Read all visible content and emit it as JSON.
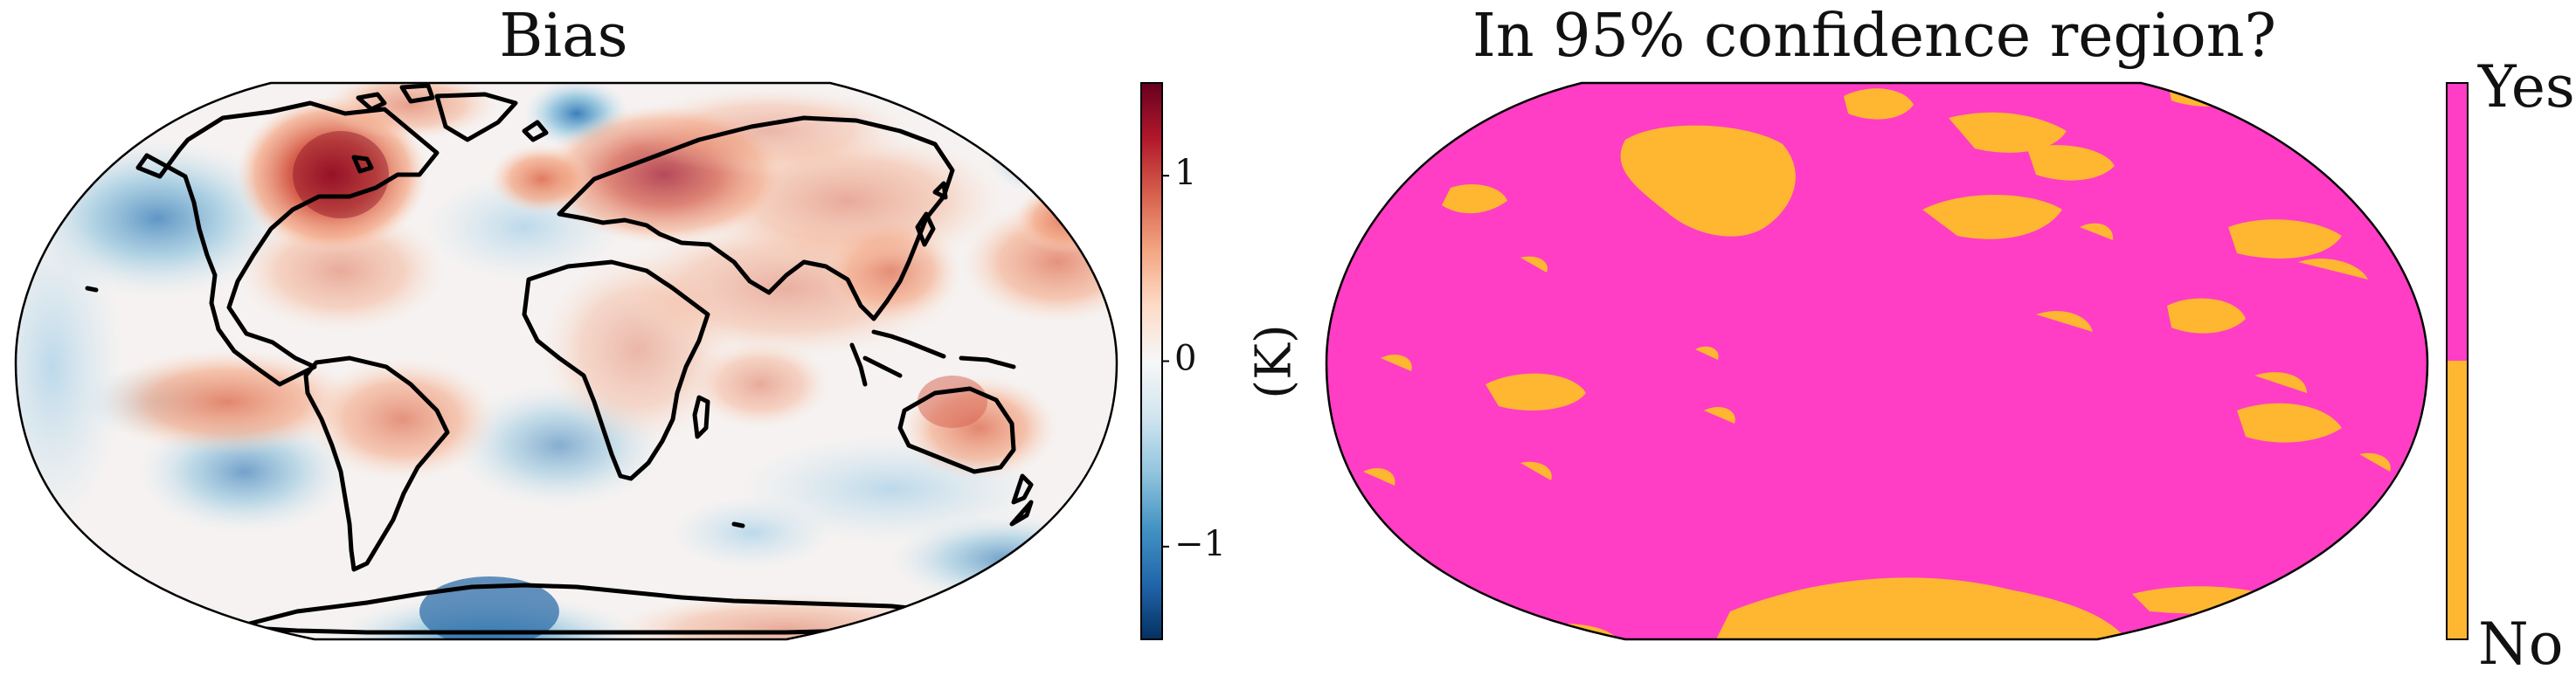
{
  "panels": [
    {
      "title": "Bias",
      "colorbar": {
        "unit_label": "(K)",
        "ticks": [
          {
            "value": 1,
            "label": "1"
          },
          {
            "value": 0,
            "label": "0"
          },
          {
            "value": -1,
            "label": "−1"
          }
        ],
        "range": [
          -1.5,
          1.5
        ],
        "colormap": [
          "#053061",
          "#2166ac",
          "#4393c3",
          "#92c5de",
          "#d1e5f0",
          "#f7f7f7",
          "#fddbc7",
          "#f4a582",
          "#d6604d",
          "#b2182b",
          "#67001f"
        ]
      }
    },
    {
      "title": "In 95% confidence region?",
      "colorbar": {
        "categories": [
          {
            "label": "Yes",
            "color": "#ff3dc5"
          },
          {
            "label": "No",
            "color": "#ffb732"
          }
        ]
      }
    }
  ]
}
